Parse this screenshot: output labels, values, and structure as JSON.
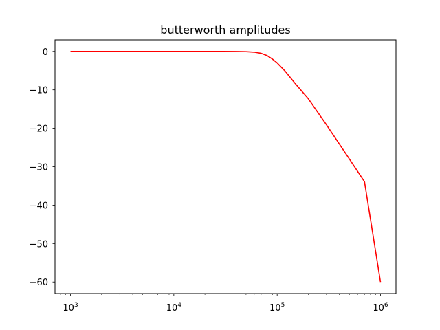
{
  "chart_data": {
    "type": "line",
    "title": "butterworth amplitudes",
    "xlabel": "",
    "ylabel": "",
    "xscale": "log",
    "xlim": [
      708,
      1412000
    ],
    "ylim": [
      -63,
      3
    ],
    "grid": false,
    "legend": "none",
    "x_ticks": [
      {
        "value": 1000,
        "base": "10",
        "exp": "3"
      },
      {
        "value": 10000,
        "base": "10",
        "exp": "4"
      },
      {
        "value": 100000,
        "base": "10",
        "exp": "5"
      },
      {
        "value": 1000000,
        "base": "10",
        "exp": "6"
      }
    ],
    "y_ticks": [
      0,
      -10,
      -20,
      -30,
      -40,
      -50,
      -60
    ],
    "series": [
      {
        "color": "#ff0000",
        "x": [
          1000,
          2000,
          5000,
          10000,
          20000,
          30000,
          40000,
          50000,
          60000,
          70000,
          80000,
          90000,
          100000,
          120000,
          150000,
          200000,
          300000,
          500000,
          700000,
          1000000
        ],
        "y": [
          0,
          0,
          0,
          0,
          0,
          0,
          -0.02,
          -0.07,
          -0.2,
          -0.5,
          -1.1,
          -2.0,
          -3.0,
          -5.2,
          -8.4,
          -12.3,
          -19.1,
          -28.0,
          -33.9,
          -60
        ]
      }
    ]
  }
}
